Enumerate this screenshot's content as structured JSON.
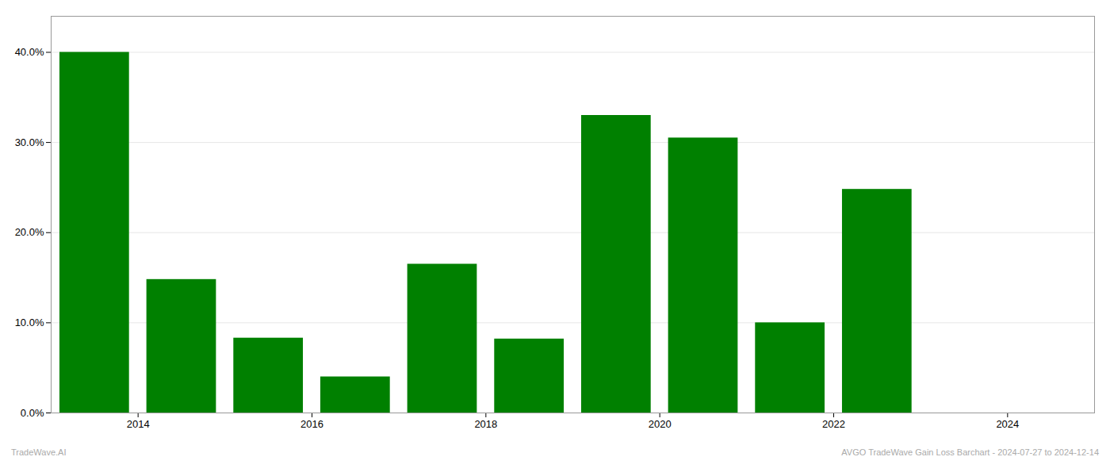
{
  "chart_data": {
    "type": "bar",
    "x": [
      2014,
      2015,
      2016,
      2017,
      2018,
      2019,
      2020,
      2021,
      2022,
      2023,
      2024
    ],
    "values": [
      0.4,
      0.148,
      0.083,
      0.04,
      0.165,
      0.082,
      0.33,
      0.305,
      0.1,
      0.248,
      0.0
    ],
    "color": "#008000",
    "xlim": [
      2013.5,
      2025.5
    ],
    "xticks": [
      {
        "value": 2014.5,
        "label": "2014"
      },
      {
        "value": 2016.5,
        "label": "2016"
      },
      {
        "value": 2018.5,
        "label": "2018"
      },
      {
        "value": 2020.5,
        "label": "2020"
      },
      {
        "value": 2022.5,
        "label": "2022"
      },
      {
        "value": 2024.5,
        "label": "2024"
      }
    ],
    "ylim": [
      0,
      0.44
    ],
    "yticks": [
      {
        "value": 0.0,
        "label": "0.0%"
      },
      {
        "value": 0.1,
        "label": "10.0%"
      },
      {
        "value": 0.2,
        "label": "20.0%"
      },
      {
        "value": 0.3,
        "label": "30.0%"
      },
      {
        "value": 0.4,
        "label": "40.0%"
      }
    ],
    "grid": true,
    "annotations": [
      "TradeWave.AI",
      "AVGO TradeWave Gain Loss Barchart - 2024-07-27 to 2024-12-14"
    ]
  }
}
